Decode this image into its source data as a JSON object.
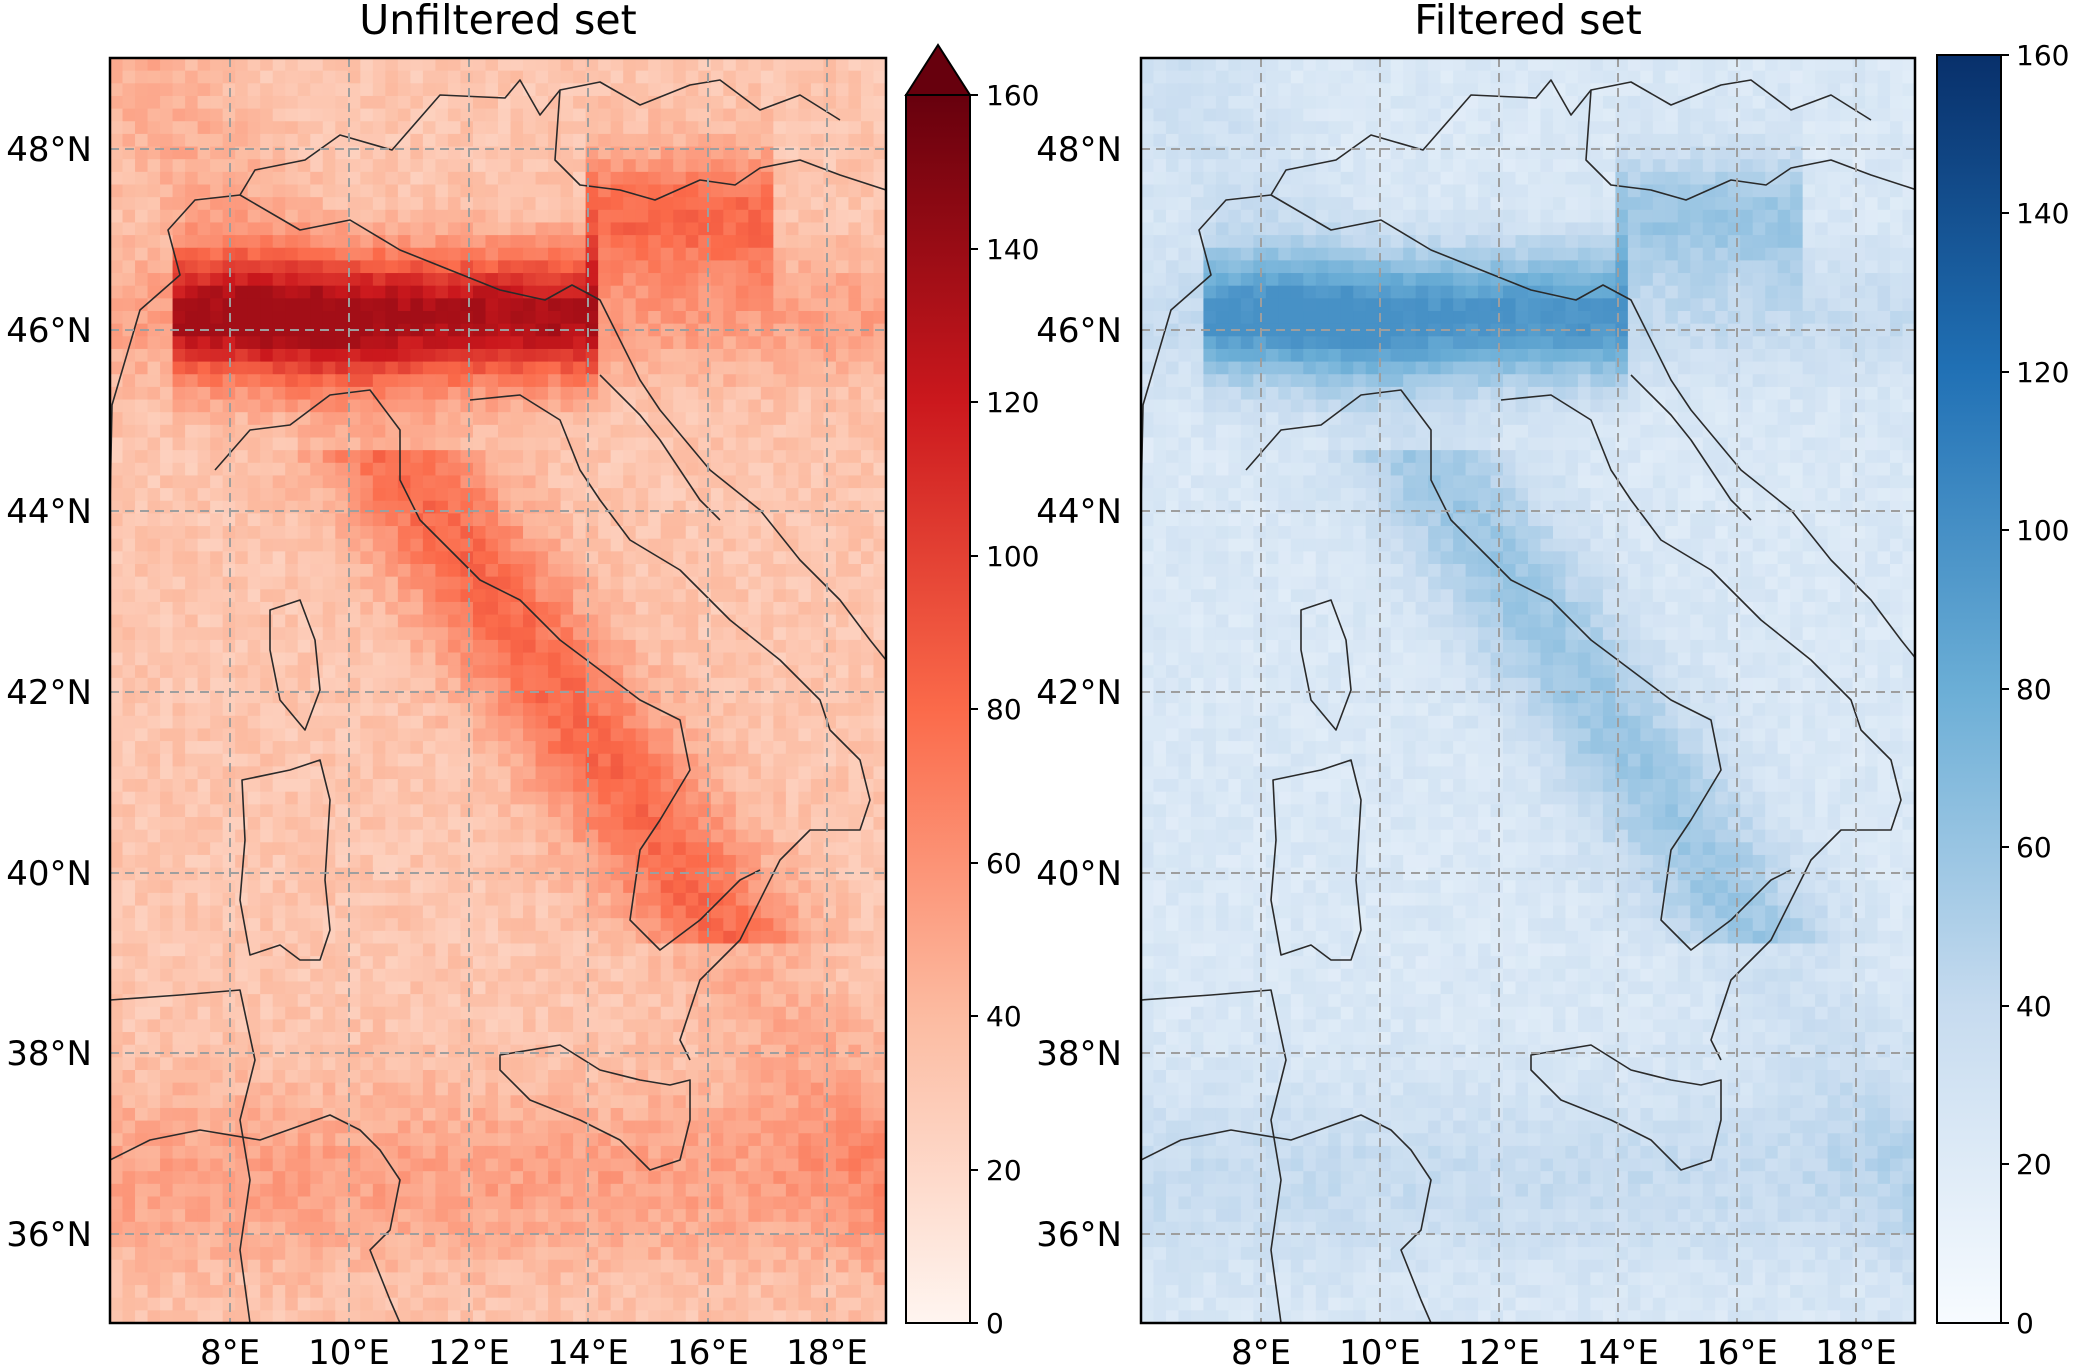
{
  "figure": {
    "panels": [
      {
        "id": "unfiltered",
        "title": "Unfiltered set",
        "colormap": "Reds",
        "colorbar": {
          "ticks": [
            0,
            20,
            40,
            60,
            80,
            100,
            120,
            140,
            160
          ],
          "vmin": 0,
          "vmax": 160,
          "extend": "max"
        },
        "lat_labels": [
          "48°N",
          "46°N",
          "44°N",
          "42°N",
          "40°N",
          "38°N",
          "36°N"
        ],
        "lon_labels": [
          "8°E",
          "10°E",
          "12°E",
          "14°E",
          "16°E",
          "18°E"
        ]
      },
      {
        "id": "filtered",
        "title": "Filtered set",
        "colormap": "Blues",
        "colorbar": {
          "ticks": [
            0,
            20,
            40,
            60,
            80,
            100,
            120,
            140,
            160
          ],
          "vmin": 0,
          "vmax": 160,
          "extend": "none"
        },
        "lat_labels": [
          "48°N",
          "46°N",
          "44°N",
          "42°N",
          "40°N",
          "38°N",
          "36°N"
        ],
        "lon_labels": [
          "8°E",
          "10°E",
          "12°E",
          "14°E",
          "16°E",
          "18°E"
        ]
      }
    ],
    "map_extent": {
      "lon": [
        6,
        19
      ],
      "lat": [
        35,
        49
      ]
    },
    "gridlines": {
      "lon": [
        8,
        10,
        12,
        14,
        16,
        18
      ],
      "lat": [
        36,
        38,
        40,
        42,
        44,
        46,
        48
      ],
      "style": "dashed"
    },
    "colors": {
      "reds_high": "#67000d",
      "reds_low": "#fff5f0",
      "blues_high": "#08306b",
      "blues_low": "#f7fbff",
      "grid": "#9e9e9e"
    }
  }
}
